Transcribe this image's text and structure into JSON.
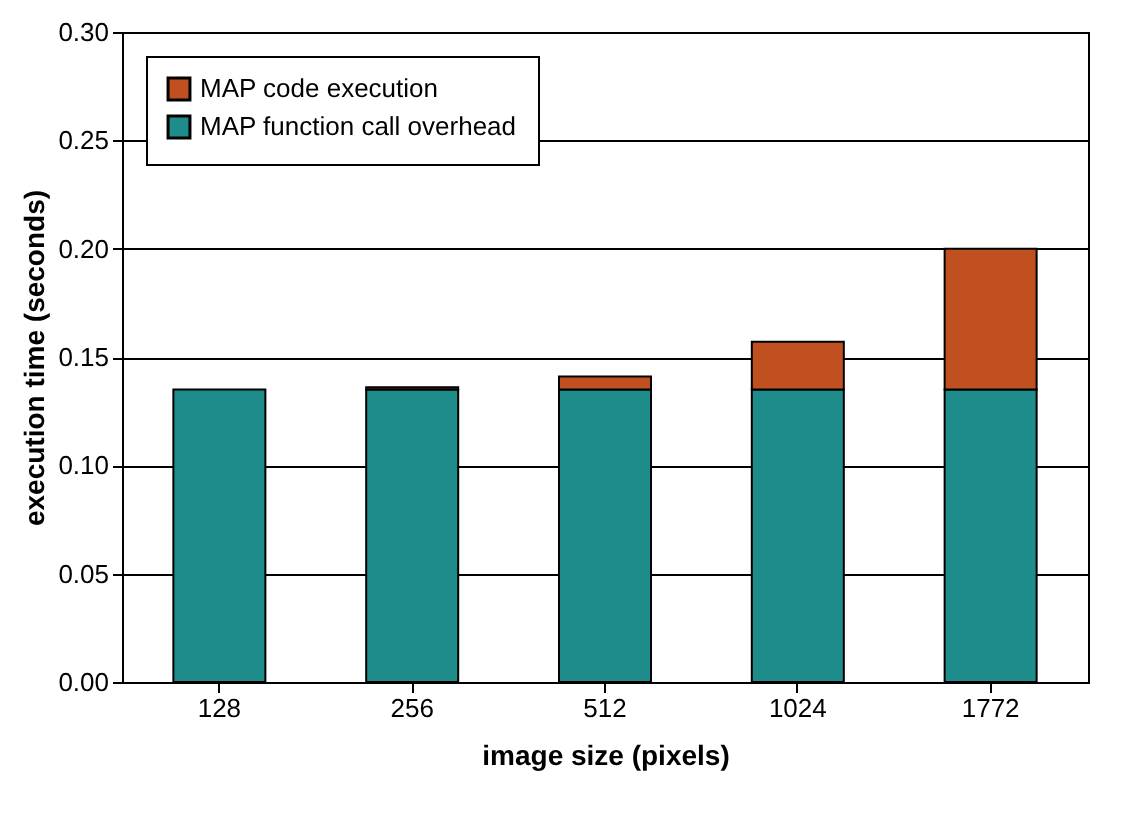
{
  "chart_data": {
    "type": "bar",
    "stacked": true,
    "xlabel": "image size (pixels)",
    "ylabel": "execution time (seconds)",
    "categories": [
      "128",
      "256",
      "512",
      "1024",
      "1772"
    ],
    "series": [
      {
        "name": "MAP function call overhead",
        "color": "#1f8c8c",
        "values": [
          0.135,
          0.135,
          0.135,
          0.135,
          0.135
        ]
      },
      {
        "name": "MAP code execution",
        "color": "#c0501f",
        "values": [
          null,
          0.001,
          0.006,
          0.022,
          0.065
        ]
      }
    ],
    "ylim": [
      0,
      0.3
    ],
    "yticks": [
      {
        "value": 0,
        "label": "0.00"
      },
      0.05,
      {
        "value": 0.1,
        "label": "0.10"
      },
      0.15,
      {
        "value": 0.2,
        "label": "0.20"
      },
      0.25,
      {
        "value": 0.3,
        "label": "0.30"
      }
    ],
    "grid": "y",
    "legend": "top left"
  }
}
